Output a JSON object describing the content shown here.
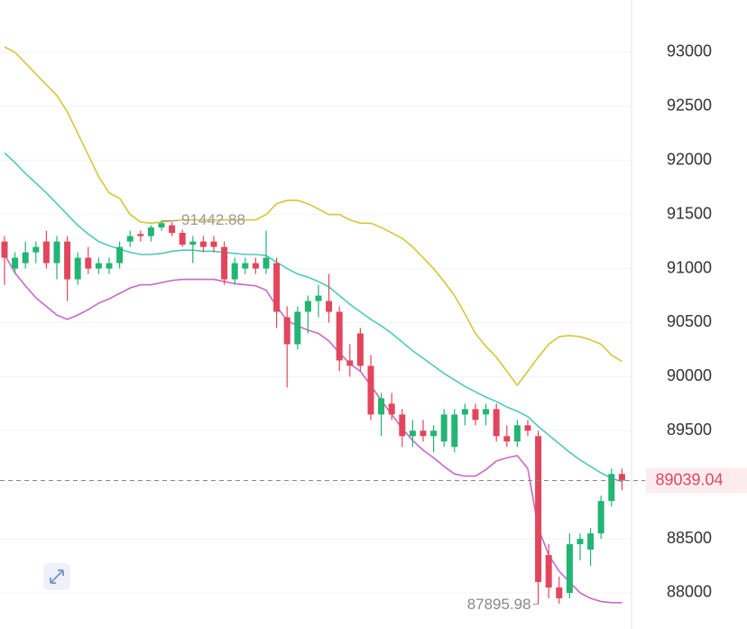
{
  "chart_data": {
    "type": "candlestick",
    "ylim": [
      87666,
      93484
    ],
    "yticks": [
      88000,
      88500,
      89000,
      89500,
      90000,
      90500,
      91000,
      91500,
      92000,
      92500,
      93000
    ],
    "grid": true,
    "up_color": "#22b573",
    "down_color": "#e2465c",
    "max_price": 91442.88,
    "min_price": 87895.98,
    "last_price": 89039.04,
    "candles": [
      [
        91250,
        91300,
        90850,
        91100
      ],
      [
        91000,
        91150,
        90950,
        91100
      ],
      [
        91050,
        91250,
        91000,
        91150
      ],
      [
        91150,
        91250,
        91050,
        91200
      ],
      [
        91250,
        91350,
        91000,
        91050
      ],
      [
        91050,
        91300,
        90900,
        91250
      ],
      [
        91250,
        91300,
        90700,
        90900
      ],
      [
        90900,
        91150,
        90850,
        91100
      ],
      [
        91100,
        91200,
        90950,
        91000
      ],
      [
        91000,
        91100,
        90950,
        91050
      ],
      [
        91000,
        91100,
        90950,
        91050
      ],
      [
        91050,
        91250,
        91000,
        91200
      ],
      [
        91250,
        91350,
        91200,
        91300
      ],
      [
        91320,
        91350,
        91250,
        91300
      ],
      [
        91300,
        91400,
        91250,
        91380
      ],
      [
        91380,
        91442.88,
        91350,
        91420
      ],
      [
        91400,
        91430,
        91300,
        91330
      ],
      [
        91330,
        91360,
        91200,
        91220
      ],
      [
        91220,
        91300,
        91050,
        91250
      ],
      [
        91250,
        91300,
        91150,
        91200
      ],
      [
        91250,
        91300,
        91150,
        91200
      ],
      [
        91200,
        91250,
        90850,
        90900
      ],
      [
        90900,
        91100,
        90850,
        91050
      ],
      [
        91000,
        91100,
        90950,
        91050
      ],
      [
        91050,
        91100,
        90950,
        91000
      ],
      [
        91000,
        91350,
        90950,
        91100
      ],
      [
        91050,
        91100,
        90450,
        90600
      ],
      [
        90550,
        90650,
        89900,
        90300
      ],
      [
        90300,
        90650,
        90250,
        90600
      ],
      [
        90600,
        90750,
        90400,
        90700
      ],
      [
        90700,
        90850,
        90550,
        90750
      ],
      [
        90700,
        90950,
        90500,
        90600
      ],
      [
        90600,
        90650,
        90050,
        90150
      ],
      [
        90150,
        90300,
        90000,
        90100
      ],
      [
        90400,
        90450,
        90050,
        90100
      ],
      [
        90100,
        90200,
        89600,
        89650
      ],
      [
        89650,
        89850,
        89450,
        89800
      ],
      [
        89750,
        89850,
        89600,
        89650
      ],
      [
        89650,
        89700,
        89350,
        89450
      ],
      [
        89450,
        89600,
        89350,
        89500
      ],
      [
        89500,
        89600,
        89400,
        89450
      ],
      [
        89450,
        89550,
        89300,
        89500
      ],
      [
        89400,
        89700,
        89350,
        89650
      ],
      [
        89350,
        89700,
        89300,
        89650
      ],
      [
        89650,
        89750,
        89550,
        89700
      ],
      [
        89700,
        89750,
        89550,
        89600
      ],
      [
        89650,
        89750,
        89550,
        89700
      ],
      [
        89700,
        89750,
        89400,
        89450
      ],
      [
        89450,
        89550,
        89350,
        89400
      ],
      [
        89400,
        89600,
        89350,
        89550
      ],
      [
        89550,
        89600,
        89450,
        89500
      ],
      [
        89450,
        89500,
        87895.98,
        88100
      ],
      [
        88350,
        88450,
        87950,
        88050
      ],
      [
        88050,
        88150,
        87900,
        87950
      ],
      [
        88000,
        88550,
        87950,
        88450
      ],
      [
        88450,
        88550,
        88300,
        88500
      ],
      [
        88400,
        88600,
        88250,
        88550
      ],
      [
        88550,
        88900,
        88500,
        88850
      ],
      [
        88850,
        89150,
        88800,
        89100
      ],
      [
        89100,
        89150,
        88950,
        89039.04
      ]
    ],
    "series": [
      {
        "color": "#d6c53c",
        "values": [
          93050,
          93000,
          92900,
          92800,
          92700,
          92600,
          92450,
          92250,
          92050,
          91850,
          91700,
          91650,
          91500,
          91430,
          91420,
          91430,
          91440,
          91450,
          91450,
          91450,
          91450,
          91450,
          91450,
          91450,
          91450,
          91500,
          91600,
          91630,
          91630,
          91600,
          91550,
          91500,
          91500,
          91450,
          91420,
          91420,
          91380,
          91330,
          91280,
          91200,
          91100,
          91000,
          90880,
          90750,
          90580,
          90400,
          90280,
          90180,
          90050,
          89920,
          90050,
          90180,
          90300,
          90370,
          90380,
          90370,
          90340,
          90300,
          90200,
          90140
        ]
      },
      {
        "color": "#4ecab6",
        "values": [
          92070,
          91980,
          91880,
          91790,
          91700,
          91600,
          91500,
          91400,
          91320,
          91250,
          91210,
          91180,
          91150,
          91130,
          91130,
          91140,
          91160,
          91170,
          91170,
          91160,
          91160,
          91150,
          91140,
          91130,
          91130,
          91120,
          91060,
          91000,
          90950,
          90920,
          90880,
          90830,
          90750,
          90670,
          90600,
          90530,
          90470,
          90400,
          90320,
          90240,
          90170,
          90100,
          90030,
          89970,
          89910,
          89860,
          89810,
          89770,
          89720,
          89680,
          89630,
          89540,
          89460,
          89380,
          89300,
          89230,
          89170,
          89110,
          89060,
          89030
        ]
      },
      {
        "color": "#c66bc6",
        "values": [
          91130,
          90960,
          90840,
          90730,
          90650,
          90570,
          90530,
          90570,
          90620,
          90680,
          90720,
          90770,
          90820,
          90850,
          90850,
          90870,
          90890,
          90900,
          90900,
          90900,
          90900,
          90880,
          90860,
          90850,
          90840,
          90800,
          90650,
          90520,
          90470,
          90430,
          90400,
          90330,
          90220,
          90120,
          90050,
          89920,
          89780,
          89650,
          89520,
          89410,
          89320,
          89250,
          89170,
          89100,
          89080,
          89080,
          89140,
          89220,
          89250,
          89270,
          89150,
          88600,
          88350,
          88200,
          88100,
          88000,
          87950,
          87920,
          87910,
          87910
        ]
      }
    ]
  }
}
